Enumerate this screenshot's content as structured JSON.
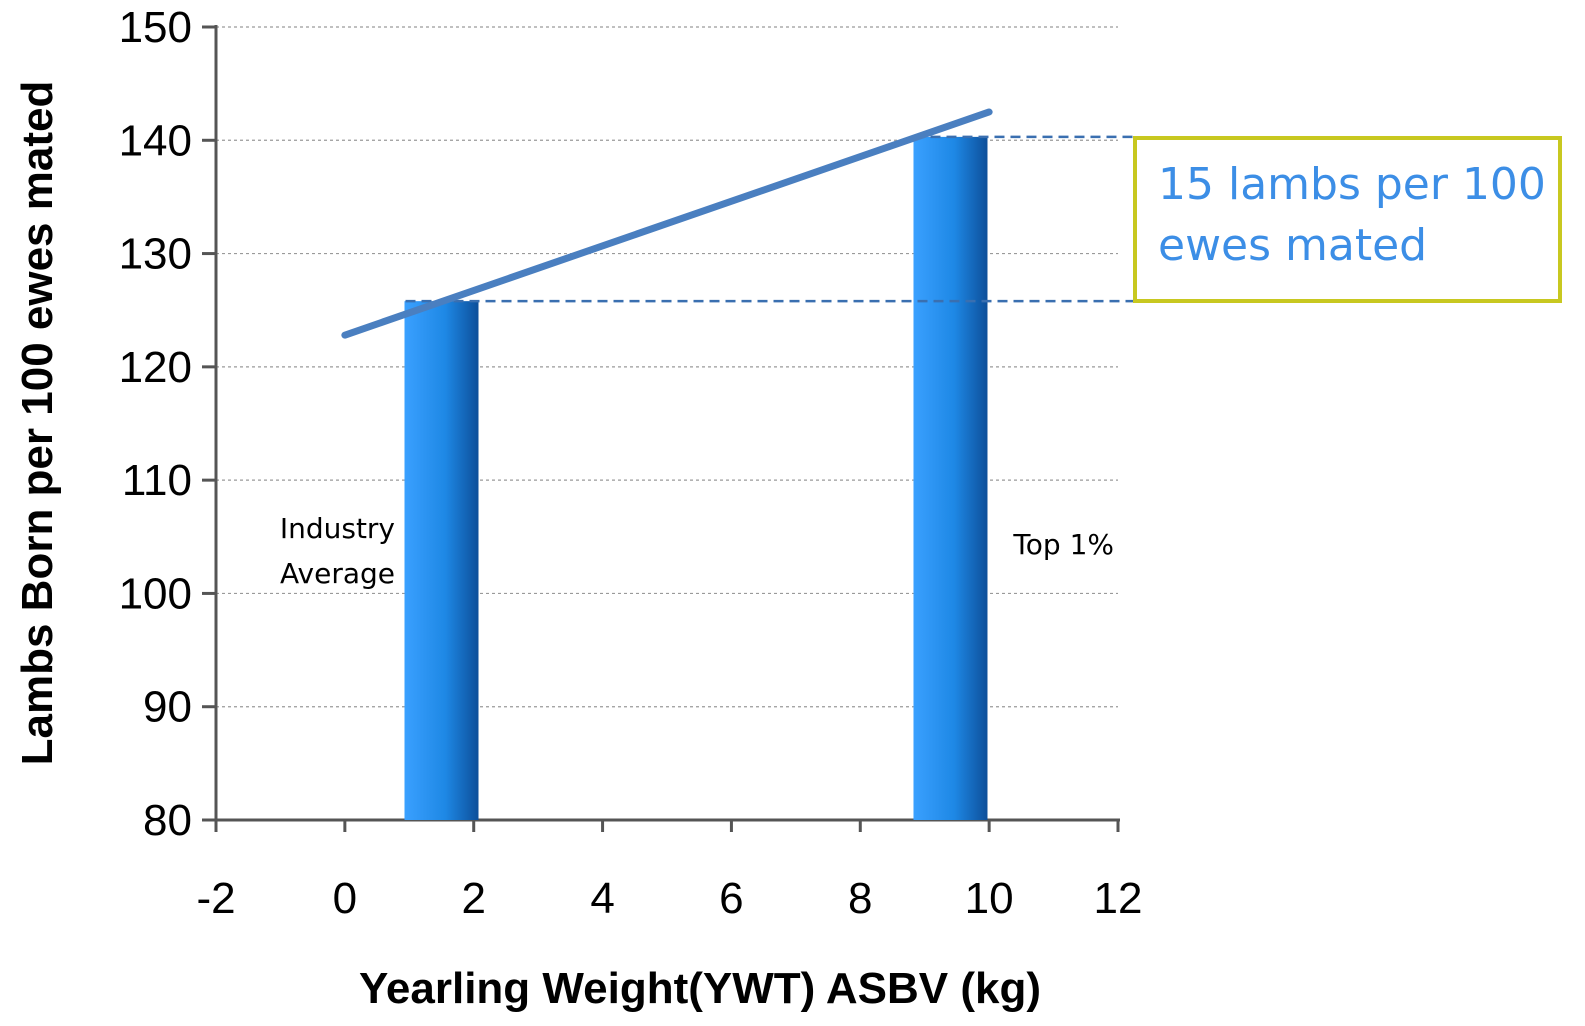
{
  "chart_data": {
    "type": "bar",
    "xlabel": "Yearling Weight(YWT) ASBV (kg)",
    "ylabel": "Lambs Born per 100 ewes mated",
    "xlim": [
      -2,
      12
    ],
    "ylim": [
      80,
      150
    ],
    "x_ticks": [
      -2,
      0,
      2,
      4,
      6,
      8,
      10,
      12
    ],
    "y_ticks": [
      80,
      90,
      100,
      110,
      120,
      130,
      140,
      150
    ],
    "grid": true,
    "bars": [
      {
        "x": 1.5,
        "value": 125.8,
        "label": [
          "Industry",
          "Average"
        ]
      },
      {
        "x": 9.4,
        "value": 140.3,
        "label": [
          "Top 1%"
        ]
      }
    ],
    "trend_line": {
      "start": [
        0,
        122.8
      ],
      "end": [
        10,
        142.5
      ]
    },
    "reference_lines": [
      140.3,
      125.8
    ],
    "annotation": {
      "lines": [
        "15 lambs per 100",
        "ewes mated"
      ]
    },
    "colors": {
      "bar": "#1e88e5",
      "trend": "#4a7fc0",
      "reference": "#3a6fb0",
      "callout_border": "#c8c820",
      "callout_text": "#3c8ee6"
    }
  }
}
